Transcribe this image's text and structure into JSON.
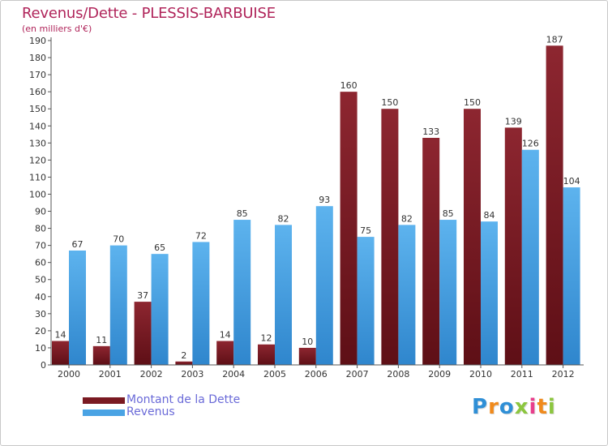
{
  "title": "Revenus/Dette - PLESSIS-BARBUISE",
  "subtitle": "(en milliers d'€)",
  "chart_data": {
    "type": "bar",
    "title": "Revenus/Dette - PLESSIS-BARBUISE",
    "ylabel": "(en milliers d'€)",
    "xlabel": "",
    "ylim": [
      0,
      190
    ],
    "y_ticks": [
      0,
      10,
      20,
      30,
      40,
      50,
      60,
      70,
      80,
      90,
      100,
      110,
      120,
      130,
      140,
      150,
      160,
      170,
      180,
      190
    ],
    "grid": false,
    "legend_position": "bottom-left",
    "categories": [
      "2000",
      "2001",
      "2002",
      "2003",
      "2004",
      "2005",
      "2006",
      "2007",
      "2008",
      "2009",
      "2010",
      "2011",
      "2012"
    ],
    "series": [
      {
        "name": "Montant de la Dette",
        "color": "#7a1a22",
        "values": [
          14,
          11,
          37,
          2,
          14,
          12,
          10,
          160,
          150,
          133,
          150,
          139,
          187
        ]
      },
      {
        "name": "Revenus",
        "color": "#4aa3e4",
        "values": [
          67,
          70,
          65,
          72,
          85,
          82,
          93,
          75,
          82,
          85,
          84,
          126,
          104
        ]
      }
    ]
  },
  "logo": {
    "letters": [
      "P",
      "r",
      "o",
      "x",
      "i",
      "t",
      "i"
    ],
    "colors": [
      "#2f8fd6",
      "#f08a1c",
      "#2f8fd6",
      "#8cc63f",
      "#e83e8c",
      "#f08a1c",
      "#8cc63f"
    ]
  }
}
